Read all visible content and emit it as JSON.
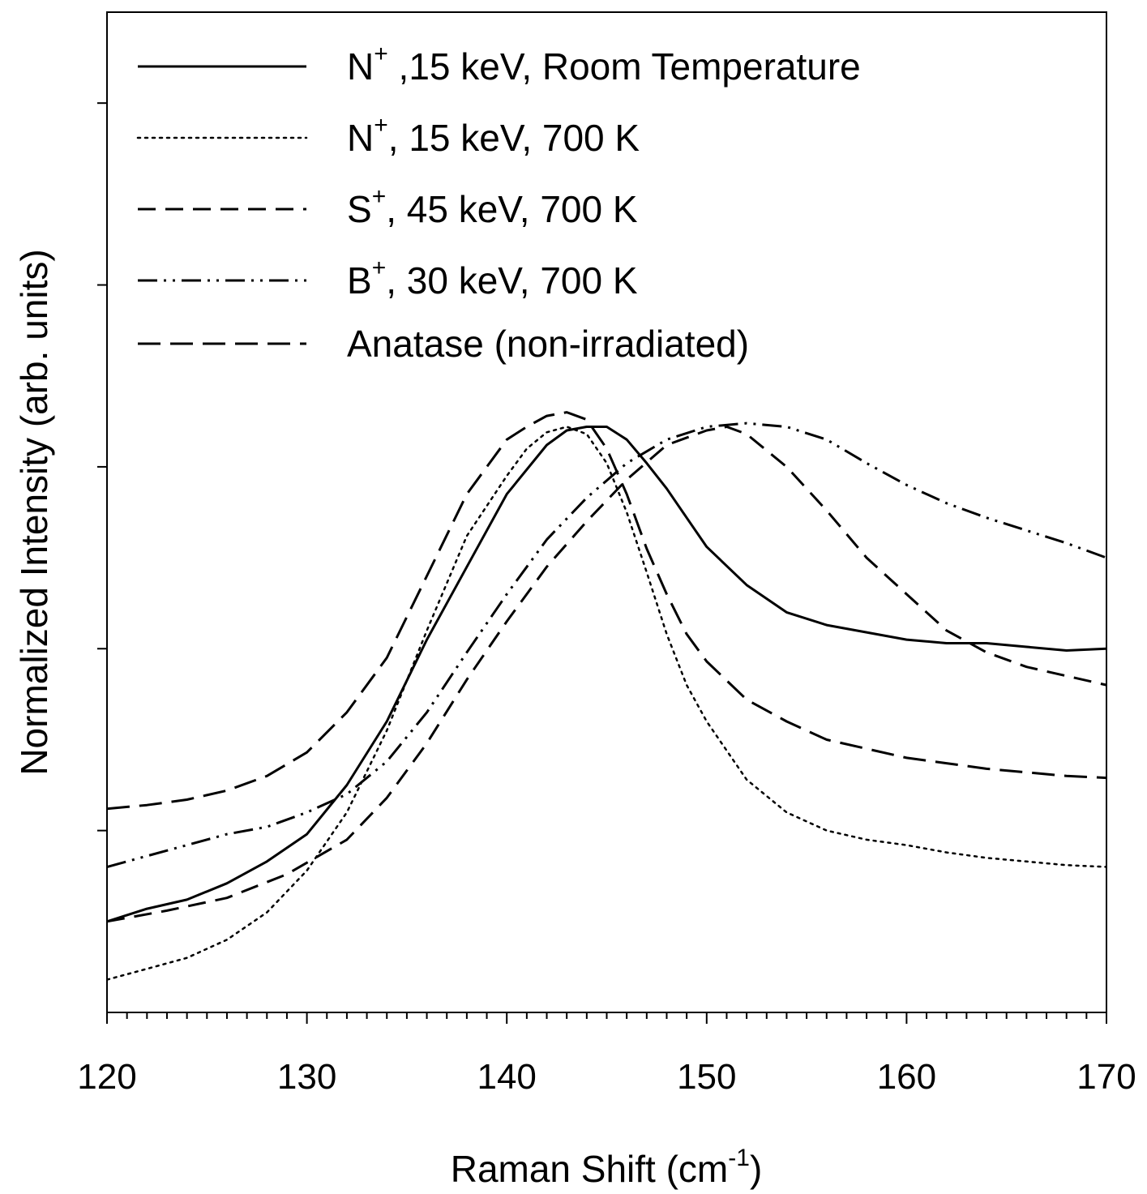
{
  "chart_data": {
    "type": "line",
    "title": "",
    "xlabel": {
      "main": "Raman Shift (cm",
      "sup": "-1",
      "tail": ")"
    },
    "ylabel": "Normalized Intensity (arb. units)",
    "xlim": [
      120,
      170
    ],
    "ylim": [
      0,
      5.5
    ],
    "x_ticks": [
      "120",
      "130",
      "140",
      "150",
      "160",
      "170"
    ],
    "y_tick_labels_shown": false,
    "grid": false,
    "legend_position": "top-left",
    "series": [
      {
        "name": {
          "ion": "N",
          "charge": "+",
          "rest": " ,15 keV, Room Temperature"
        },
        "style": "solid",
        "x": [
          120,
          122,
          124,
          126,
          128,
          130,
          132,
          134,
          136,
          138,
          140,
          142,
          143,
          144,
          145,
          146,
          147,
          148,
          149,
          150,
          152,
          154,
          156,
          158,
          160,
          162,
          164,
          166,
          168,
          170
        ],
        "y": [
          0.5,
          0.57,
          0.62,
          0.71,
          0.83,
          0.98,
          1.25,
          1.6,
          2.05,
          2.45,
          2.85,
          3.12,
          3.2,
          3.22,
          3.22,
          3.15,
          3.02,
          2.88,
          2.72,
          2.56,
          2.35,
          2.2,
          2.13,
          2.09,
          2.05,
          2.03,
          2.03,
          2.01,
          1.99,
          2.0
        ]
      },
      {
        "name": {
          "ion": "N",
          "charge": "+",
          "rest": ", 15 keV, 700 K"
        },
        "style": "dotted",
        "x": [
          120,
          122,
          124,
          126,
          128,
          130,
          132,
          134,
          136,
          138,
          140,
          141,
          142,
          143,
          144,
          145,
          146,
          147,
          148,
          149,
          150,
          152,
          154,
          156,
          158,
          160,
          162,
          164,
          166,
          168,
          170
        ],
        "y": [
          0.18,
          0.24,
          0.3,
          0.4,
          0.55,
          0.78,
          1.1,
          1.55,
          2.1,
          2.62,
          2.95,
          3.1,
          3.19,
          3.22,
          3.18,
          3.02,
          2.75,
          2.42,
          2.08,
          1.8,
          1.6,
          1.28,
          1.1,
          1.0,
          0.95,
          0.92,
          0.88,
          0.85,
          0.83,
          0.81,
          0.8
        ]
      },
      {
        "name": {
          "ion": "S",
          "charge": "+",
          "rest": ", 45 keV, 700 K"
        },
        "style": "dashed",
        "x": [
          120,
          123,
          126,
          129,
          132,
          134,
          136,
          138,
          140,
          142,
          144,
          146,
          148,
          150,
          151,
          152,
          154,
          156,
          158,
          160,
          162,
          164,
          166,
          168,
          170
        ],
        "y": [
          0.5,
          0.56,
          0.63,
          0.76,
          0.95,
          1.18,
          1.48,
          1.83,
          2.15,
          2.45,
          2.7,
          2.93,
          3.12,
          3.2,
          3.22,
          3.18,
          3.0,
          2.76,
          2.5,
          2.3,
          2.1,
          1.98,
          1.9,
          1.85,
          1.8
        ]
      },
      {
        "name": {
          "ion": "B",
          "charge": "+",
          "rest": ", 30 keV, 700 K"
        },
        "style": "dash-dot-dot",
        "x": [
          120,
          122,
          124,
          126,
          128,
          130,
          132,
          134,
          136,
          138,
          140,
          142,
          144,
          146,
          148,
          150,
          152,
          154,
          156,
          158,
          160,
          162,
          164,
          166,
          168,
          170
        ],
        "y": [
          0.8,
          0.86,
          0.92,
          0.98,
          1.02,
          1.1,
          1.2,
          1.38,
          1.65,
          1.98,
          2.3,
          2.6,
          2.83,
          3.02,
          3.15,
          3.22,
          3.24,
          3.22,
          3.15,
          3.02,
          2.9,
          2.8,
          2.72,
          2.65,
          2.58,
          2.5
        ]
      },
      {
        "name": {
          "ion": "",
          "charge": "",
          "rest": "Anatase (non-irradiated)"
        },
        "style": "long-dash",
        "x": [
          120,
          122,
          124,
          126,
          128,
          130,
          132,
          134,
          136,
          138,
          140,
          141,
          142,
          143,
          144,
          145,
          146,
          147,
          148,
          149,
          150,
          152,
          154,
          156,
          158,
          160,
          162,
          164,
          166,
          168,
          170
        ],
        "y": [
          1.12,
          1.14,
          1.17,
          1.22,
          1.3,
          1.43,
          1.65,
          1.95,
          2.4,
          2.85,
          3.15,
          3.22,
          3.28,
          3.3,
          3.26,
          3.1,
          2.85,
          2.55,
          2.3,
          2.08,
          1.93,
          1.72,
          1.6,
          1.5,
          1.45,
          1.4,
          1.37,
          1.34,
          1.32,
          1.3,
          1.29
        ]
      }
    ]
  }
}
